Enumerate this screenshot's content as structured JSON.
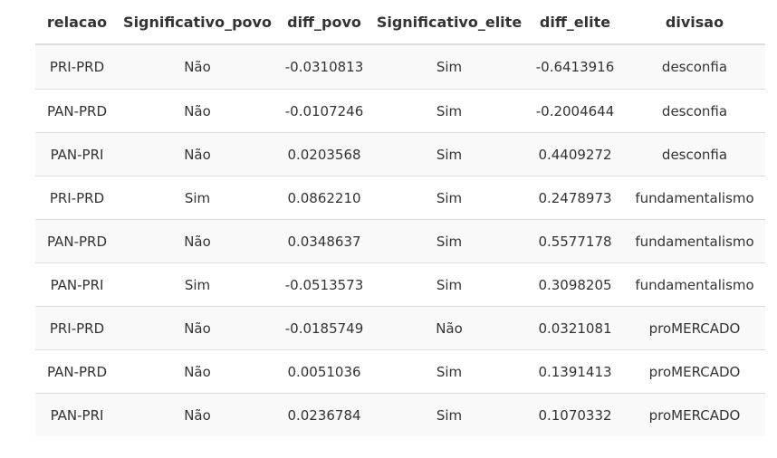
{
  "table": {
    "columns": [
      "relacao",
      "Significativo_povo",
      "diff_povo",
      "Significativo_elite",
      "diff_elite",
      "divisao"
    ],
    "rows": [
      [
        "PRI-PRD",
        "Não",
        "-0.0310813",
        "Sim",
        "-0.6413916",
        "desconfia"
      ],
      [
        "PAN-PRD",
        "Não",
        "-0.0107246",
        "Sim",
        "-0.2004644",
        "desconfia"
      ],
      [
        "PAN-PRI",
        "Não",
        "0.0203568",
        "Sim",
        "0.4409272",
        "desconfia"
      ],
      [
        "PRI-PRD",
        "Sim",
        "0.0862210",
        "Sim",
        "0.2478973",
        "fundamentalismo"
      ],
      [
        "PAN-PRD",
        "Não",
        "0.0348637",
        "Sim",
        "0.5577178",
        "fundamentalismo"
      ],
      [
        "PAN-PRI",
        "Sim",
        "-0.0513573",
        "Sim",
        "0.3098205",
        "fundamentalismo"
      ],
      [
        "PRI-PRD",
        "Não",
        "-0.0185749",
        "Não",
        "0.0321081",
        "proMERCADO"
      ],
      [
        "PAN-PRD",
        "Não",
        "0.0051036",
        "Sim",
        "0.1391413",
        "proMERCADO"
      ],
      [
        "PAN-PRI",
        "Não",
        "0.0236784",
        "Sim",
        "0.1070332",
        "proMERCADO"
      ]
    ]
  }
}
